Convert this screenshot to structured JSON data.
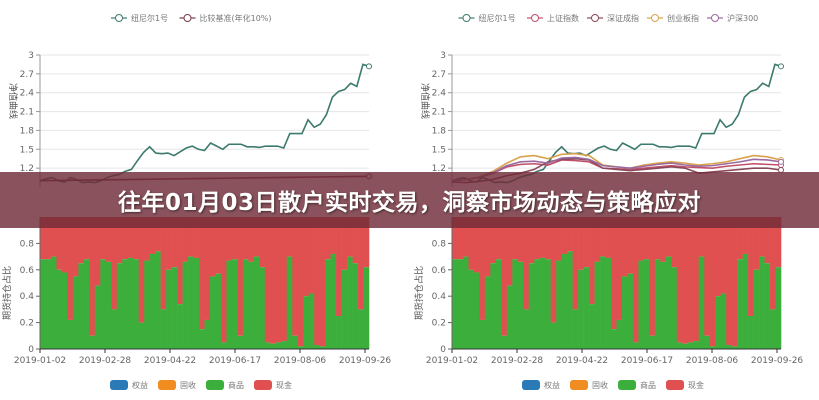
{
  "title": "往年01月03日散户实时交易，洞察市场动态与策略应对",
  "colors": {
    "banner": "#702c38",
    "equity": "#2a7ab8",
    "fixed_income": "#f08c20",
    "commodity": "#3cae3c",
    "cash": "#e05050"
  },
  "chart_data": [
    {
      "type": "line",
      "ylabel": "净值曲线",
      "ylim": [
        0.9,
        3
      ],
      "yticks": [
        "1.2",
        "1.5",
        "1.8",
        "2.1",
        "2.4",
        "2.7",
        "3"
      ],
      "grid": true,
      "legend_position": "top",
      "series": [
        {
          "name": "纽尼尔1号",
          "color": "#3d7a6e",
          "values": [
            1.0,
            1.03,
            1.05,
            1.0,
            0.98,
            1.05,
            1.02,
            0.97,
            0.98,
            0.97,
            1.0,
            1.05,
            1.08,
            1.1,
            1.15,
            1.18,
            1.32,
            1.45,
            1.54,
            1.44,
            1.43,
            1.44,
            1.4,
            1.46,
            1.52,
            1.55,
            1.5,
            1.48,
            1.6,
            1.55,
            1.5,
            1.58,
            1.58,
            1.58,
            1.54,
            1.54,
            1.53,
            1.55,
            1.55,
            1.55,
            1.52,
            1.75,
            1.75,
            1.75,
            1.97,
            1.85,
            1.9,
            2.05,
            2.33,
            2.42,
            2.45,
            2.55,
            2.5,
            2.85,
            2.82
          ]
        },
        {
          "name": "比较基准(年化10%)",
          "color": "#7a3a4a",
          "values": [
            1.0,
            1.01,
            1.02,
            1.03,
            1.04,
            1.05,
            1.06,
            1.07
          ]
        }
      ]
    },
    {
      "type": "line",
      "ylabel": "净值曲线",
      "ylim": [
        0.9,
        3
      ],
      "yticks": [
        "1.2",
        "1.5",
        "1.8",
        "2.1",
        "2.4",
        "2.7",
        "3"
      ],
      "grid": true,
      "legend_position": "top",
      "series": [
        {
          "name": "纽尼尔1号",
          "color": "#3d7a6e",
          "values": [
            1.0,
            1.03,
            1.05,
            1.0,
            0.98,
            1.05,
            1.02,
            0.97,
            0.98,
            0.97,
            1.0,
            1.05,
            1.08,
            1.1,
            1.15,
            1.18,
            1.32,
            1.45,
            1.54,
            1.44,
            1.43,
            1.44,
            1.4,
            1.46,
            1.52,
            1.55,
            1.5,
            1.48,
            1.6,
            1.55,
            1.5,
            1.58,
            1.58,
            1.58,
            1.54,
            1.54,
            1.53,
            1.55,
            1.55,
            1.55,
            1.52,
            1.75,
            1.75,
            1.75,
            1.97,
            1.85,
            1.9,
            2.05,
            2.33,
            2.42,
            2.45,
            2.55,
            2.5,
            2.85,
            2.82
          ]
        },
        {
          "name": "上证指数",
          "color": "#c0506a",
          "values": [
            1.0,
            1.02,
            1.05,
            1.12,
            1.22,
            1.26,
            1.27,
            1.25,
            1.33,
            1.32,
            1.3,
            1.2,
            1.19,
            1.18,
            1.2,
            1.22,
            1.24,
            1.22,
            1.21,
            1.2,
            1.23,
            1.25,
            1.27,
            1.26,
            1.25
          ]
        },
        {
          "name": "深证成指",
          "color": "#8a4a5a",
          "values": [
            0.98,
            0.97,
            0.99,
            1.02,
            1.08,
            1.12,
            1.18,
            1.3,
            1.34,
            1.35,
            1.33,
            1.2,
            1.18,
            1.16,
            1.18,
            1.2,
            1.22,
            1.2,
            1.12,
            1.14,
            1.16,
            1.18,
            1.2,
            1.2,
            1.17
          ]
        },
        {
          "name": "创业板指",
          "color": "#d9a24a",
          "values": [
            1.0,
            1.02,
            1.06,
            1.15,
            1.28,
            1.38,
            1.4,
            1.35,
            1.42,
            1.43,
            1.4,
            1.25,
            1.22,
            1.2,
            1.25,
            1.28,
            1.3,
            1.28,
            1.25,
            1.27,
            1.3,
            1.35,
            1.4,
            1.38,
            1.33
          ]
        },
        {
          "name": "沪深300",
          "color": "#9a6aa0",
          "values": [
            1.0,
            1.02,
            1.05,
            1.13,
            1.24,
            1.3,
            1.31,
            1.28,
            1.36,
            1.37,
            1.34,
            1.24,
            1.22,
            1.2,
            1.23,
            1.26,
            1.28,
            1.25,
            1.23,
            1.24,
            1.27,
            1.3,
            1.34,
            1.33,
            1.3
          ]
        }
      ]
    },
    {
      "type": "bar",
      "stacked": true,
      "ylabel": "期货持仓占比",
      "ylim": [
        0,
        1
      ],
      "yticks": [
        "0",
        "0.2",
        "0.4",
        "0.6",
        "0.8"
      ],
      "xticks": [
        "2019-01-02",
        "2019-02-28",
        "2019-04-22",
        "2019-06-17",
        "2019-08-06",
        "2019-09-26"
      ],
      "legend_position": "bottom",
      "legend": [
        "权益",
        "固收",
        "商品",
        "现金"
      ],
      "commodity": [
        0.68,
        0.68,
        0.7,
        0.6,
        0.58,
        0.22,
        0.55,
        0.65,
        0.68,
        0.1,
        0.48,
        0.68,
        0.66,
        0.3,
        0.65,
        0.68,
        0.69,
        0.68,
        0.2,
        0.67,
        0.72,
        0.74,
        0.3,
        0.6,
        0.62,
        0.34,
        0.66,
        0.7,
        0.69,
        0.15,
        0.22,
        0.55,
        0.57,
        0.05,
        0.67,
        0.68,
        0.1,
        0.68,
        0.66,
        0.7,
        0.62,
        0.05,
        0.04,
        0.05,
        0.06,
        0.7,
        0.1,
        0.02,
        0.4,
        0.42,
        0.03,
        0.02,
        0.68,
        0.72,
        0.25,
        0.6,
        0.7,
        0.65,
        0.3,
        0.62
      ]
    },
    {
      "type": "bar",
      "stacked": true,
      "ylabel": "期货持仓占比",
      "ylim": [
        0,
        1
      ],
      "yticks": [
        "0",
        "0.2",
        "0.4",
        "0.6",
        "0.8"
      ],
      "xticks": [
        "2019-01-02",
        "2019-02-28",
        "2019-04-22",
        "2019-06-17",
        "2019-08-06",
        "2019-09-26"
      ],
      "legend_position": "bottom",
      "legend": [
        "权益",
        "固收",
        "商品",
        "现金"
      ],
      "commodity": [
        0.68,
        0.68,
        0.7,
        0.6,
        0.58,
        0.22,
        0.55,
        0.65,
        0.68,
        0.1,
        0.48,
        0.68,
        0.66,
        0.3,
        0.65,
        0.68,
        0.69,
        0.68,
        0.2,
        0.67,
        0.72,
        0.74,
        0.3,
        0.6,
        0.62,
        0.34,
        0.66,
        0.7,
        0.69,
        0.15,
        0.22,
        0.55,
        0.57,
        0.05,
        0.67,
        0.68,
        0.1,
        0.68,
        0.66,
        0.7,
        0.62,
        0.05,
        0.04,
        0.05,
        0.06,
        0.7,
        0.1,
        0.02,
        0.4,
        0.42,
        0.03,
        0.02,
        0.68,
        0.72,
        0.25,
        0.6,
        0.7,
        0.65,
        0.3,
        0.62
      ]
    }
  ]
}
